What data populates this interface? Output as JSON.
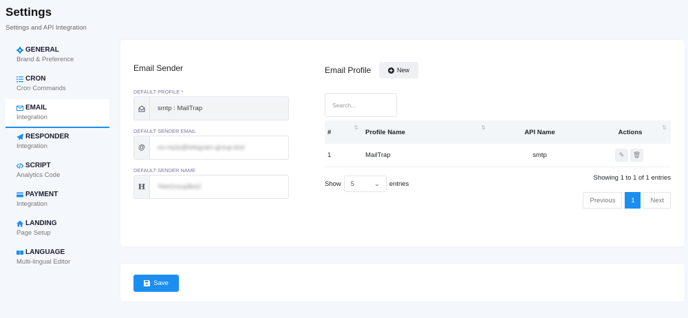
{
  "page": {
    "title": "Settings",
    "subtitle": "Settings and API Integration"
  },
  "sidebar": {
    "items": [
      {
        "label": "GENERAL",
        "sub": "Brand & Preference",
        "icon": "gear-icon"
      },
      {
        "label": "CRON",
        "sub": "Cron Commands",
        "icon": "list-icon"
      },
      {
        "label": "EMAIL",
        "sub": "Integration",
        "icon": "envelope-icon",
        "active": true
      },
      {
        "label": "RESPONDER",
        "sub": "Integration",
        "icon": "paper-plane-icon"
      },
      {
        "label": "SCRIPT",
        "sub": "Analytics Code",
        "icon": "code-icon"
      },
      {
        "label": "PAYMENT",
        "sub": "Integration",
        "icon": "credit-card-icon"
      },
      {
        "label": "LANDING",
        "sub": "Page Setup",
        "icon": "home-icon"
      },
      {
        "label": "LANGUAGE",
        "sub": "Multi-lingual Editor",
        "icon": "language-icon"
      }
    ]
  },
  "sender": {
    "title": "Email Sender",
    "profile_label": "DEFAULT PROFILE *",
    "profile_value": "smtp : MailTrap",
    "email_label": "DEFAULT SENDER EMAIL",
    "email_value": "no-reply@telegram-group.test",
    "name_label": "DEFAULT SENDER NAME",
    "name_value": "TeleGroupBot2",
    "name_icon": "H",
    "email_icon": "@"
  },
  "profile": {
    "title": "Email Profile",
    "new_label": "New",
    "search_placeholder": "Search...",
    "columns": [
      "#",
      "Profile Name",
      "API Name",
      "Actions"
    ],
    "rows": [
      {
        "num": "1",
        "name": "MailTrap",
        "api": "smtp"
      }
    ],
    "show_label": "Show",
    "page_size": "5",
    "entries_label": "entries",
    "info": "Showing 1 to 1 of 1 entries",
    "prev": "Previous",
    "page": "1",
    "next": "Next"
  },
  "footer": {
    "save_label": "Save"
  },
  "colors": {
    "accent": "#1b8ef0"
  }
}
